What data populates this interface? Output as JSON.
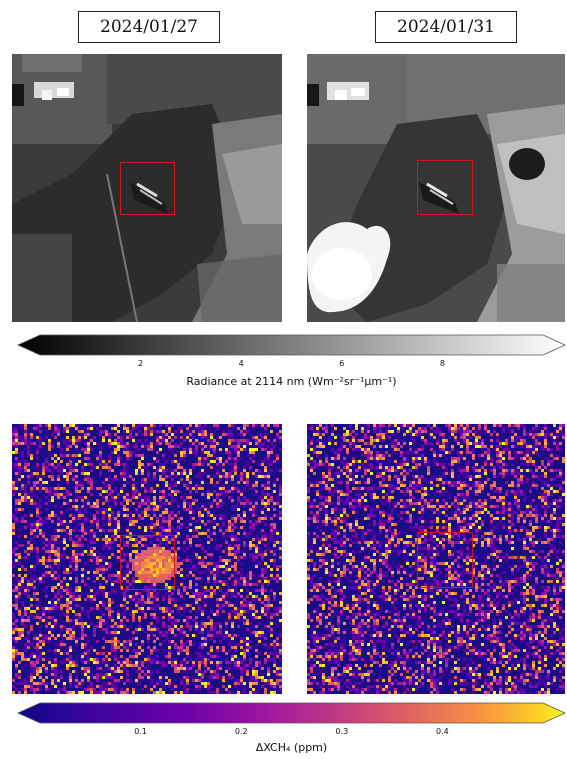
{
  "dates": {
    "left": "2024/01/27",
    "right": "2024/01/31"
  },
  "radiance_colorbar": {
    "label": "Radiance at 2114 nm (Wm⁻²sr⁻¹μm⁻¹)",
    "ticks": [
      "2",
      "4",
      "6",
      "8"
    ],
    "tick_values": [
      2,
      4,
      6,
      8
    ],
    "range": [
      0,
      10
    ],
    "colormap": "gray"
  },
  "ch4_colorbar": {
    "label": "ΔXCH₄ (ppm)",
    "ticks": [
      "0.1",
      "0.2",
      "0.3",
      "0.4"
    ],
    "tick_values": [
      0.1,
      0.2,
      0.3,
      0.4
    ],
    "range": [
      0,
      0.5
    ],
    "colormap": "plasma"
  }
}
